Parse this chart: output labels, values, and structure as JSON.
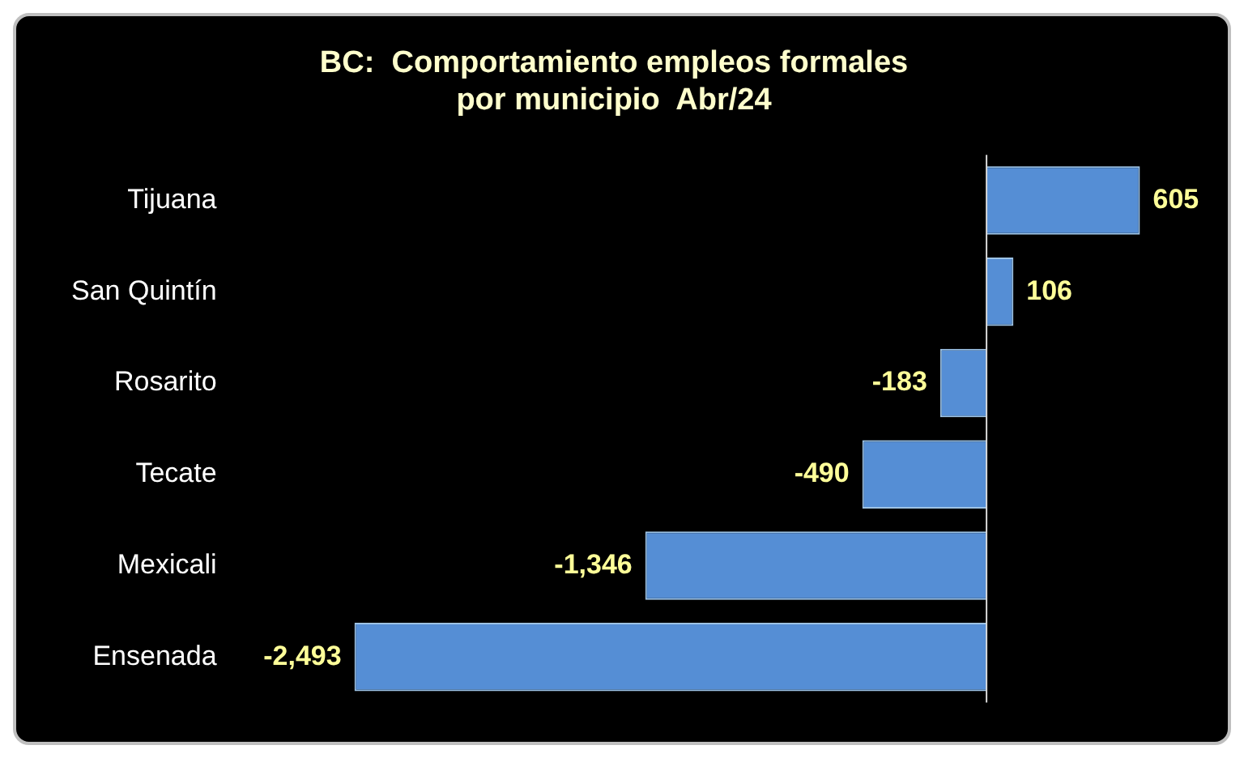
{
  "chart_data": {
    "type": "bar",
    "orientation": "horizontal",
    "title": "BC:  Comportamiento empleos formales\npor municipio  Abr/24",
    "categories": [
      "Tijuana",
      "San Quintín",
      "Rosarito",
      "Tecate",
      "Mexicali",
      "Ensenada"
    ],
    "values": [
      605,
      106,
      -183,
      -490,
      -1346,
      -2493
    ],
    "value_labels": [
      "605",
      "106",
      "-183",
      "-490",
      "-1,346",
      "-2,493"
    ],
    "color": "#558ed5",
    "legend": false,
    "tick_labels": "y"
  }
}
